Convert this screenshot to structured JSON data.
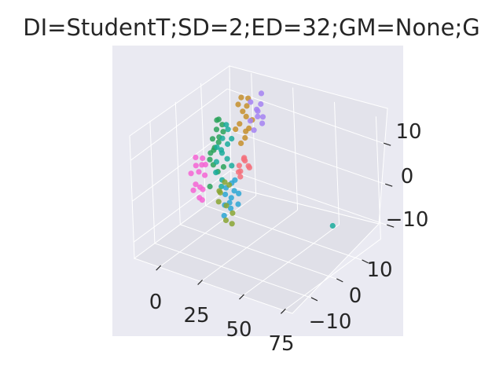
{
  "chart_data": {
    "type": "scatter",
    "projection": "3d",
    "title": "DI=StudentT;SD=2;ED=32;GM=None;G",
    "xlabel": "",
    "ylabel": "",
    "zlabel": "",
    "xlim": [
      -15,
      80
    ],
    "ylim": [
      -18,
      20
    ],
    "zlim": [
      -14,
      16
    ],
    "x_ticks": [
      "0",
      "25",
      "50",
      "75"
    ],
    "y_ticks": [
      "−10",
      "0",
      "10"
    ],
    "z_ticks": [
      "−10",
      "0",
      "10"
    ],
    "grid": true,
    "legend": "none",
    "series_colors": [
      "#f564d4",
      "#2aa25a",
      "#1aab9c",
      "#c58f2c",
      "#a582f2",
      "#f5707b",
      "#2ca6d4",
      "#88a532"
    ],
    "series": [
      {
        "color": "#f564d4",
        "points": [
          [
            -4,
            0,
            2
          ],
          [
            -4,
            1,
            0
          ],
          [
            -3,
            -1,
            -2
          ],
          [
            -3,
            2,
            3
          ],
          [
            -2,
            0,
            -3
          ],
          [
            -4,
            -2,
            1
          ],
          [
            -2,
            1,
            -4
          ],
          [
            -3,
            3,
            1
          ],
          [
            -1,
            -1,
            -5
          ],
          [
            -4,
            0,
            4
          ],
          [
            -2,
            2,
            -1
          ],
          [
            -3,
            -2,
            -3
          ],
          [
            -1,
            0,
            -6
          ],
          [
            -2,
            1,
            2
          ]
        ]
      },
      {
        "color": "#2aa25a",
        "points": [
          [
            2,
            3,
            8
          ],
          [
            3,
            4,
            10
          ],
          [
            4,
            2,
            6
          ],
          [
            5,
            5,
            11
          ],
          [
            3,
            1,
            4
          ],
          [
            6,
            3,
            9
          ],
          [
            4,
            4,
            7
          ],
          [
            2,
            2,
            5
          ],
          [
            5,
            1,
            3
          ],
          [
            7,
            4,
            10
          ],
          [
            3,
            5,
            12
          ],
          [
            6,
            2,
            1
          ],
          [
            4,
            0,
            -2
          ],
          [
            8,
            3,
            2
          ],
          [
            5,
            3,
            13
          ],
          [
            3,
            3,
            6
          ]
        ]
      },
      {
        "color": "#1aab9c",
        "points": [
          [
            6,
            2,
            7
          ],
          [
            8,
            3,
            9
          ],
          [
            7,
            1,
            4
          ],
          [
            10,
            4,
            11
          ],
          [
            9,
            2,
            6
          ],
          [
            11,
            3,
            8
          ],
          [
            8,
            0,
            2
          ],
          [
            12,
            2,
            5
          ],
          [
            10,
            1,
            0
          ],
          [
            13,
            3,
            3
          ],
          [
            9,
            4,
            12
          ],
          [
            11,
            0,
            -1
          ],
          [
            7,
            3,
            6
          ],
          [
            12,
            4,
            9
          ],
          [
            62,
            10,
            -8
          ]
        ]
      },
      {
        "color": "#c58f2c",
        "points": [
          [
            12,
            7,
            16
          ],
          [
            13,
            8,
            14
          ],
          [
            14,
            6,
            12
          ],
          [
            15,
            9,
            17
          ],
          [
            13,
            5,
            11
          ],
          [
            16,
            7,
            10
          ],
          [
            14,
            9,
            15
          ],
          [
            17,
            6,
            9
          ],
          [
            15,
            8,
            13
          ],
          [
            18,
            7,
            11
          ],
          [
            16,
            5,
            8
          ],
          [
            14,
            7,
            18
          ],
          [
            17,
            9,
            12
          ]
        ]
      },
      {
        "color": "#a582f2",
        "points": [
          [
            18,
            8,
            17
          ],
          [
            20,
            9,
            15
          ],
          [
            19,
            7,
            13
          ],
          [
            21,
            10,
            16
          ],
          [
            22,
            8,
            14
          ],
          [
            20,
            11,
            18
          ],
          [
            23,
            9,
            12
          ],
          [
            19,
            10,
            14
          ],
          [
            21,
            7,
            11
          ],
          [
            22,
            10,
            13
          ]
        ]
      },
      {
        "color": "#f5707b",
        "points": [
          [
            16,
            4,
            3
          ],
          [
            18,
            5,
            4
          ],
          [
            17,
            3,
            2
          ],
          [
            19,
            4,
            5
          ],
          [
            15,
            5,
            1
          ],
          [
            20,
            5,
            3
          ],
          [
            18,
            3,
            1
          ],
          [
            16,
            6,
            4
          ],
          [
            19,
            6,
            2
          ]
        ]
      },
      {
        "color": "#2ca6d4",
        "points": [
          [
            10,
            2,
            -4
          ],
          [
            12,
            3,
            -5
          ],
          [
            11,
            1,
            -6
          ],
          [
            14,
            3,
            -3
          ],
          [
            13,
            2,
            -7
          ],
          [
            15,
            4,
            -4
          ],
          [
            9,
            3,
            -3
          ],
          [
            12,
            0,
            -8
          ],
          [
            16,
            3,
            -6
          ],
          [
            11,
            4,
            -2
          ],
          [
            14,
            1,
            -5
          ],
          [
            13,
            4,
            -1
          ]
        ]
      },
      {
        "color": "#88a532",
        "points": [
          [
            8,
            1,
            -3
          ],
          [
            10,
            2,
            -1
          ],
          [
            9,
            0,
            -5
          ],
          [
            12,
            1,
            -6
          ],
          [
            11,
            3,
            -2
          ],
          [
            14,
            2,
            -8
          ],
          [
            13,
            0,
            -9
          ],
          [
            7,
            2,
            -4
          ],
          [
            15,
            1,
            -10
          ]
        ]
      }
    ]
  }
}
